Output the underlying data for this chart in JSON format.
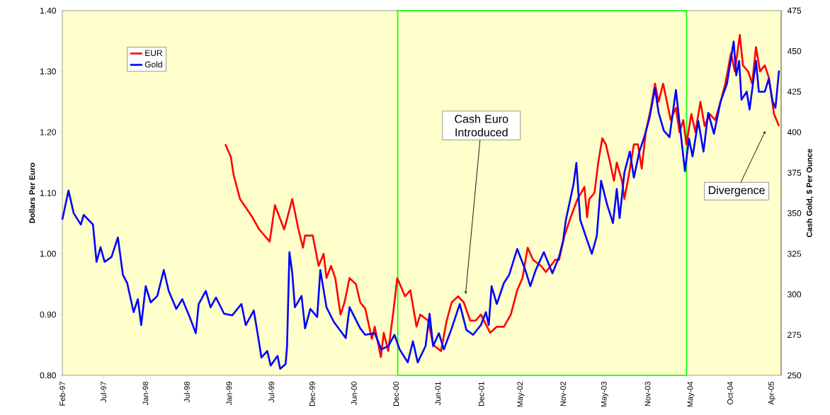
{
  "chart_data": {
    "type": "line",
    "ylabel": "Dollars Per Euro",
    "y2label": "Cash Gold, $ Per Ounce",
    "xlim": [
      "1997-02-01",
      "2005-05-16"
    ],
    "xticks": [
      {
        "value": "1997-02-01",
        "label": "Feb-97"
      },
      {
        "value": "1997-07-24",
        "label": "Jul-97"
      },
      {
        "value": "1998-01-17",
        "label": "Jan-98"
      },
      {
        "value": "1998-07-10",
        "label": "Jul-98"
      },
      {
        "value": "1999-01-04",
        "label": "Jan-99"
      },
      {
        "value": "1999-07-01",
        "label": "Jul-99"
      },
      {
        "value": "1999-12-20",
        "label": "Dec-99"
      },
      {
        "value": "2000-06-13",
        "label": "Jun-00"
      },
      {
        "value": "2000-12-07",
        "label": "Dec-00"
      },
      {
        "value": "2001-06-01",
        "label": "Jun-01"
      },
      {
        "value": "2001-12-01",
        "label": "Dec-01"
      },
      {
        "value": "2002-05-16",
        "label": "May-02"
      },
      {
        "value": "2002-11-10",
        "label": "Nov-02"
      },
      {
        "value": "2003-05-04",
        "label": "May-03"
      },
      {
        "value": "2003-11-01",
        "label": "Nov-03"
      },
      {
        "value": "2004-05-01",
        "label": "May-04"
      },
      {
        "value": "2004-10-13",
        "label": "Oct-04"
      },
      {
        "value": "2005-04-07",
        "label": "Apr-05"
      }
    ],
    "ylim": [
      0.8,
      1.4
    ],
    "yticks": [
      {
        "value": 0.8,
        "label": "0.80"
      },
      {
        "value": 0.9,
        "label": "0.90"
      },
      {
        "value": 1.0,
        "label": "1.00"
      },
      {
        "value": 1.1,
        "label": "1.10"
      },
      {
        "value": 1.2,
        "label": "1.20"
      },
      {
        "value": 1.3,
        "label": "1.30"
      },
      {
        "value": 1.4,
        "label": "1.40"
      }
    ],
    "y2lim": [
      250,
      475
    ],
    "y2ticks": [
      250,
      275,
      300,
      325,
      350,
      375,
      400,
      425,
      450,
      475
    ],
    "legend": "top left",
    "marker": "none",
    "line_style": "solid",
    "series": [
      {
        "name": "EUR",
        "color": "#ff0000",
        "x": [
          "1998-12-19",
          "1999-01-11",
          "1999-01-23",
          "1999-02-19",
          "1999-03-09",
          "1999-04-12",
          "1999-05-11",
          "1999-06-24",
          "1999-07-16",
          "1999-08-24",
          "1999-09-27",
          "1999-10-23",
          "1999-11-11",
          "1999-11-20",
          "1999-12-22",
          "2000-01-16",
          "2000-02-06",
          "2000-02-18",
          "2000-03-08",
          "2000-03-26",
          "2000-04-17",
          "2000-05-04",
          "2000-05-25",
          "2000-06-21",
          "2000-07-09",
          "2000-07-30",
          "2000-08-27",
          "2000-09-08",
          "2000-10-04",
          "2000-10-16",
          "2000-11-04",
          "2000-11-24",
          "2000-12-12",
          "2001-01-14",
          "2001-02-05",
          "2001-03-03",
          "2001-03-19",
          "2001-04-21",
          "2001-05-12",
          "2001-06-14",
          "2001-07-08",
          "2001-07-29",
          "2001-08-25",
          "2001-09-18",
          "2001-10-15",
          "2001-11-07",
          "2001-11-29",
          "2001-12-25",
          "2002-01-07",
          "2002-02-04",
          "2002-03-06",
          "2002-04-04",
          "2002-05-01",
          "2002-05-23",
          "2002-06-14",
          "2002-07-07",
          "2002-08-09",
          "2002-08-30",
          "2002-10-08",
          "2002-10-24",
          "2002-11-16",
          "2002-12-12",
          "2003-01-10",
          "2003-02-08",
          "2003-02-19",
          "2003-02-28",
          "2003-03-22",
          "2003-04-07",
          "2003-04-24",
          "2003-05-09",
          "2003-05-27",
          "2003-06-12",
          "2003-06-24",
          "2003-07-16",
          "2003-07-26",
          "2003-08-14",
          "2003-09-04",
          "2003-09-21",
          "2003-10-07",
          "2003-10-24",
          "2003-11-15",
          "2003-12-02",
          "2003-12-17",
          "2004-01-05",
          "2004-02-06",
          "2004-02-28",
          "2004-03-14",
          "2004-03-30",
          "2004-04-12",
          "2004-05-03",
          "2004-05-20",
          "2004-06-10",
          "2004-06-28",
          "2004-07-19",
          "2004-08-11",
          "2004-09-03",
          "2004-09-23",
          "2004-10-17",
          "2004-11-02",
          "2004-11-23",
          "2004-12-06",
          "2004-12-28",
          "2005-01-14",
          "2005-01-30",
          "2005-02-16",
          "2005-03-08",
          "2005-03-25",
          "2005-04-16",
          "2005-05-07"
        ],
        "values": [
          1.18,
          1.16,
          1.13,
          1.09,
          1.08,
          1.06,
          1.04,
          1.02,
          1.08,
          1.04,
          1.09,
          1.04,
          1.01,
          1.03,
          1.03,
          0.98,
          1.0,
          0.96,
          0.98,
          0.96,
          0.9,
          0.92,
          0.96,
          0.95,
          0.92,
          0.91,
          0.86,
          0.88,
          0.83,
          0.87,
          0.84,
          0.9,
          0.96,
          0.93,
          0.94,
          0.88,
          0.9,
          0.89,
          0.85,
          0.84,
          0.89,
          0.92,
          0.93,
          0.92,
          0.89,
          0.89,
          0.9,
          0.88,
          0.87,
          0.88,
          0.88,
          0.9,
          0.94,
          0.96,
          1.01,
          0.99,
          0.98,
          0.97,
          0.99,
          0.99,
          1.03,
          1.06,
          1.09,
          1.11,
          1.06,
          1.09,
          1.1,
          1.15,
          1.19,
          1.18,
          1.15,
          1.12,
          1.15,
          1.12,
          1.09,
          1.13,
          1.18,
          1.18,
          1.14,
          1.2,
          1.24,
          1.28,
          1.25,
          1.28,
          1.22,
          1.24,
          1.2,
          1.22,
          1.18,
          1.23,
          1.2,
          1.25,
          1.21,
          1.23,
          1.22,
          1.25,
          1.28,
          1.33,
          1.3,
          1.36,
          1.31,
          1.3,
          1.28,
          1.34,
          1.3,
          1.31,
          1.29,
          1.23,
          1.21
        ]
      },
      {
        "name": "Gold",
        "color": "#0000ff",
        "axis": "y2",
        "x": [
          "1997-02-01",
          "1997-02-27",
          "1997-03-21",
          "1997-04-20",
          "1997-05-02",
          "1997-06-10",
          "1997-06-25",
          "1997-07-12",
          "1997-07-29",
          "1997-08-27",
          "1997-09-23",
          "1997-10-14",
          "1997-11-01",
          "1997-11-28",
          "1997-12-16",
          "1997-12-30",
          "1998-01-18",
          "1998-02-08",
          "1998-03-08",
          "1998-04-04",
          "1998-04-25",
          "1998-05-27",
          "1998-06-21",
          "1998-07-22",
          "1998-08-17",
          "1998-08-29",
          "1998-09-28",
          "1998-10-18",
          "1998-11-10",
          "1998-12-14",
          "1999-01-17",
          "1999-02-25",
          "1999-03-15",
          "1999-04-18",
          "1999-05-05",
          "1999-05-20",
          "1999-06-14",
          "1999-06-28",
          "1999-07-27",
          "1999-08-07",
          "1999-08-30",
          "1999-09-05",
          "1999-09-15",
          "1999-09-27",
          "1999-10-08",
          "1999-11-05",
          "1999-11-20",
          "1999-12-12",
          "2000-01-10",
          "2000-01-23",
          "2000-02-18",
          "2000-03-20",
          "2000-05-09",
          "2000-05-25",
          "2000-07-09",
          "2000-07-30",
          "2000-09-08",
          "2000-10-06",
          "2000-11-04",
          "2000-11-30",
          "2000-12-22",
          "2001-01-25",
          "2001-02-16",
          "2001-03-08",
          "2001-04-10",
          "2001-04-27",
          "2001-05-12",
          "2001-06-05",
          "2001-06-26",
          "2001-07-29",
          "2001-09-01",
          "2001-09-29",
          "2001-10-27",
          "2001-11-29",
          "2001-12-20",
          "2002-01-01",
          "2002-01-13",
          "2002-02-04",
          "2002-03-06",
          "2002-03-28",
          "2002-05-01",
          "2002-06-04",
          "2002-06-25",
          "2002-07-18",
          "2002-08-21",
          "2002-09-26",
          "2002-10-24",
          "2002-11-10",
          "2002-11-22",
          "2002-12-24",
          "2003-01-05",
          "2003-01-21",
          "2003-02-13",
          "2003-03-11",
          "2003-04-01",
          "2003-04-19",
          "2003-05-15",
          "2003-06-08",
          "2003-06-24",
          "2003-07-06",
          "2003-07-26",
          "2003-08-18",
          "2003-09-04",
          "2003-09-27",
          "2003-10-18",
          "2003-11-09",
          "2003-12-02",
          "2003-12-17",
          "2004-01-08",
          "2004-02-01",
          "2004-02-28",
          "2004-03-14",
          "2004-04-06",
          "2004-04-23",
          "2004-05-08",
          "2004-06-01",
          "2004-06-23",
          "2004-07-13",
          "2004-08-06",
          "2004-09-03",
          "2004-09-30",
          "2004-10-28",
          "2004-11-08",
          "2004-11-20",
          "2004-11-30",
          "2004-12-22",
          "2005-01-03",
          "2005-01-30",
          "2005-02-11",
          "2005-03-08",
          "2005-03-25",
          "2005-04-10",
          "2005-04-22",
          "2005-05-07"
        ],
        "values": [
          346,
          364,
          350,
          343,
          349,
          343,
          320,
          329,
          320,
          323,
          335,
          312,
          307,
          289,
          297,
          281,
          305,
          295,
          299,
          315,
          302,
          291,
          297,
          286,
          276,
          294,
          302,
          292,
          298,
          288,
          287,
          294,
          281,
          290,
          275,
          261,
          265,
          256,
          262,
          254,
          257,
          268,
          326,
          313,
          292,
          299,
          279,
          291,
          286,
          315,
          292,
          283,
          273,
          292,
          279,
          275,
          276,
          266,
          268,
          275,
          266,
          258,
          271,
          258,
          268,
          288,
          268,
          276,
          266,
          279,
          294,
          278,
          275,
          281,
          289,
          281,
          305,
          294,
          307,
          312,
          328,
          315,
          305,
          315,
          326,
          313,
          323,
          333,
          346,
          368,
          381,
          346,
          336,
          325,
          336,
          370,
          355,
          344,
          365,
          347,
          375,
          388,
          372,
          388,
          397,
          409,
          427,
          412,
          401,
          397,
          426,
          406,
          376,
          396,
          385,
          407,
          388,
          412,
          399,
          419,
          430,
          456,
          435,
          444,
          420,
          425,
          414,
          444,
          425,
          425,
          433,
          419,
          415,
          438
        ]
      }
    ],
    "bands": [
      {
        "axis": "x",
        "from": "2000-12-14",
        "to": "2004-04-13",
        "color": "#00ff00"
      }
    ],
    "annotations": [
      "Cash Euro Introduced",
      "Divergence"
    ]
  }
}
